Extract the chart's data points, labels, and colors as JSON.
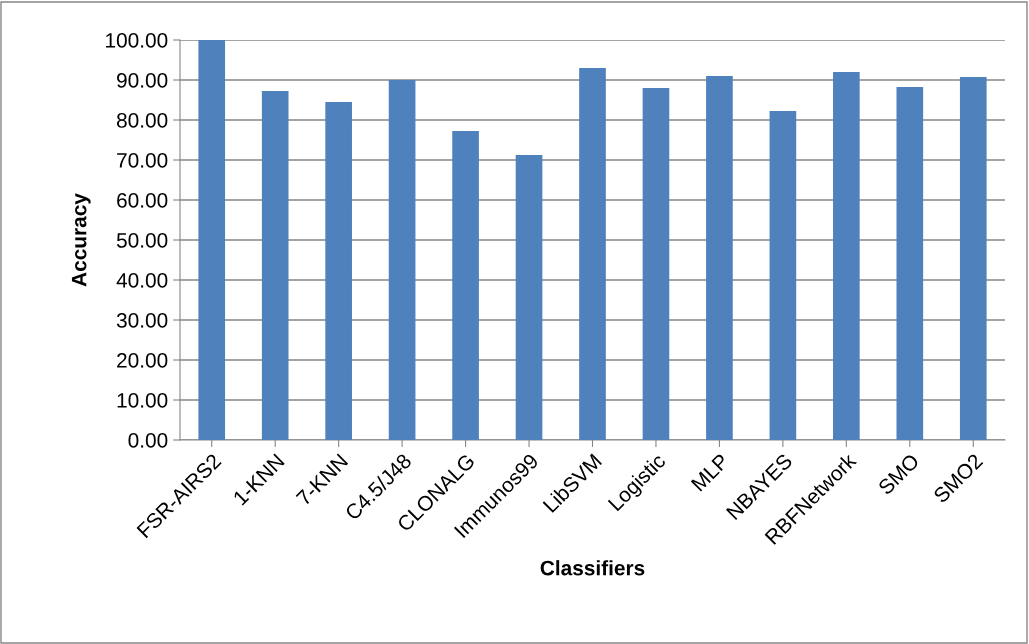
{
  "chart_data": {
    "type": "bar",
    "xlabel": "Classifiers",
    "ylabel": "Accuracy",
    "categories": [
      "FSR-AIRS2",
      "1-KNN",
      "7-KNN",
      "C4.5/J48",
      "CLONALG",
      "Immunos99",
      "LibSVM",
      "Logistic",
      "MLP",
      "NBAYES",
      "RBFNetwork",
      "SMO",
      "SMO2"
    ],
    "values": [
      100,
      87.25,
      84.5,
      90,
      77.25,
      71.25,
      93,
      88,
      91,
      82.25,
      92,
      88.25,
      90.75
    ],
    "color": "#4f81bd",
    "ylim": [
      0,
      100
    ],
    "yticks": [
      {
        "value": 0,
        "label": "0.00"
      },
      {
        "value": 10,
        "label": "10.00"
      },
      {
        "value": 20,
        "label": "20.00"
      },
      {
        "value": 30,
        "label": "30.00"
      },
      {
        "value": 40,
        "label": "40.00"
      },
      {
        "value": 50,
        "label": "50.00"
      },
      {
        "value": 60,
        "label": "60.00"
      },
      {
        "value": 70,
        "label": "70.00"
      },
      {
        "value": 80,
        "label": "80.00"
      },
      {
        "value": 90,
        "label": "90.00"
      },
      {
        "value": 100,
        "label": "100.00"
      }
    ],
    "grid": "y"
  }
}
